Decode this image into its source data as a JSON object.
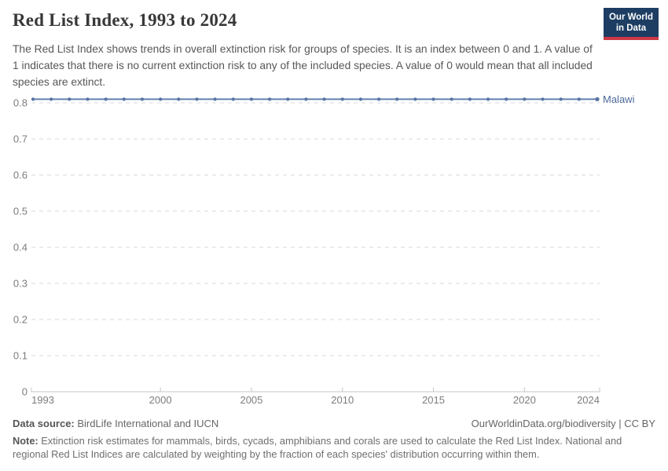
{
  "header": {
    "title": "Red List Index, 1993 to 2024",
    "subtitle": "The Red List Index shows trends in overall extinction risk for groups of species. It is an index between 0 and 1. A value of 1 indicates that there is no current extinction risk to any of the included species. A value of 0 would mean that all included species are extinct.",
    "logo_text": "Our World\nin Data",
    "logo_bg": "#1d3d63",
    "logo_accent": "#cd3846"
  },
  "chart_data": {
    "type": "line",
    "title": "Red List Index, 1993 to 2024",
    "xlabel": "",
    "ylabel": "",
    "xlim": [
      1993,
      2024
    ],
    "ylim": [
      0,
      0.81
    ],
    "grid": "horizontal-dashed",
    "legend_position": "right-end-of-line",
    "x": [
      1993,
      1994,
      1995,
      1996,
      1997,
      1998,
      1999,
      2000,
      2001,
      2002,
      2003,
      2004,
      2005,
      2006,
      2007,
      2008,
      2009,
      2010,
      2011,
      2012,
      2013,
      2014,
      2015,
      2016,
      2017,
      2018,
      2019,
      2020,
      2021,
      2022,
      2023,
      2024
    ],
    "series": [
      {
        "name": "Malawi",
        "color": "#6480af",
        "marker_color": "#5674a5",
        "label_color": "#4c6a9c",
        "values": [
          0.81,
          0.81,
          0.81,
          0.81,
          0.81,
          0.81,
          0.81,
          0.81,
          0.81,
          0.81,
          0.81,
          0.81,
          0.81,
          0.81,
          0.81,
          0.81,
          0.81,
          0.81,
          0.81,
          0.81,
          0.81,
          0.81,
          0.81,
          0.81,
          0.81,
          0.81,
          0.81,
          0.81,
          0.81,
          0.81,
          0.81,
          0.81
        ]
      }
    ],
    "x_ticks": [
      1993,
      2000,
      2005,
      2010,
      2015,
      2020,
      2024
    ],
    "y_ticks": [
      0,
      0.1,
      0.2,
      0.3,
      0.4,
      0.5,
      0.6,
      0.7,
      0.8
    ],
    "grid_color": "#d9d9d9",
    "axis_color": "#c7c7c7",
    "tick_label_color": "#7d7d7d"
  },
  "footer": {
    "data_source_label": "Data source:",
    "data_source_value": "BirdLife International and IUCN",
    "link": "OurWorldinData.org/biodiversity | CC BY",
    "note_label": "Note:",
    "note_value": "Extinction risk estimates for mammals, birds, cycads, amphibians and corals are used to calculate the Red List Index. National and regional Red List Indices are calculated by weighting by the fraction of each species' distribution occurring within them."
  }
}
